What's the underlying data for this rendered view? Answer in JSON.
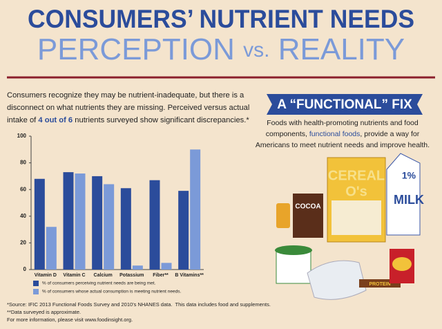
{
  "header": {
    "title": "CONSUMERS’ NUTRIENT NEEDS",
    "subtitle": [
      "PERCEPTION ",
      "vs.",
      " REALITY"
    ]
  },
  "intro": {
    "lines": [
      "Consumers recognize they may be nutrient-inadequate, but there is a",
      "disconnect on what nutrients they are missing. Perceived versus actual"
    ],
    "last_line": [
      "intake of ",
      "4 out of 6",
      " nutrients surveyed show significant discrepancies.*"
    ]
  },
  "chart_data": {
    "type": "bar",
    "categories": [
      "Vitamin D",
      "Vitamin C",
      "Calcium",
      "Potassium",
      "Fiber**",
      "B Vitamins**"
    ],
    "series": [
      {
        "name": "% of consumers perceiving nutrient needs are being met.",
        "color": "#2b4c9b",
        "values": [
          68,
          73,
          70,
          61,
          67,
          59
        ]
      },
      {
        "name": "% of consumers whose actual consumption is meeting nutrient needs.",
        "color": "#7b9ad8",
        "values": [
          32,
          72,
          64,
          3,
          5,
          90
        ]
      }
    ],
    "ylim": [
      0,
      100
    ],
    "yticks": [
      0,
      20,
      40,
      60,
      80,
      100
    ],
    "grid": false
  },
  "fix": {
    "title": "A “FUNCTIONAL” FIX",
    "lines": [
      "Foods with health-promoting nutrients and food",
      "Americans to meet nutrient needs and improve health."
    ],
    "middle_line": [
      "components, ",
      "functional foods",
      ", provide a way for"
    ]
  },
  "products": {
    "cereal": [
      "CEREAL",
      "O's"
    ],
    "cocoa": "COCOA",
    "milk": [
      "1%",
      "MILK"
    ],
    "bar": "PROTEIN"
  },
  "footnotes": [
    "*Source: IFIC 2013 Functional Foods Survey and 2010's NHANES data.  This data includes food and supplements.",
    "**Data surveyed is approximate.",
    "For more information, please visit www.foodinsight.org."
  ]
}
